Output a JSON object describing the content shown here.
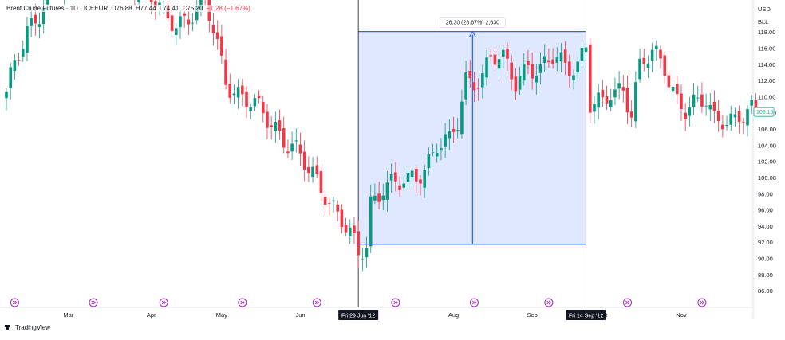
{
  "legend": {
    "symbol": "Brent Crude Futures · 1D · ICEEUR",
    "open": "O76.88",
    "high": "H77.44",
    "low": "L74.41",
    "close": "C75.20",
    "change": "−1.28 (−1.67%)"
  },
  "price_axis": {
    "currency": "USD",
    "unit": "BLL",
    "last_price_label": "108.15",
    "last_price": 108.15
  },
  "measure": {
    "label": "26.30 (28.67%) 2,630",
    "start_date_label": "Fri 29 Jun '12",
    "end_date_label": "Fri 14 Sep '12",
    "low": 91.8,
    "high": 118.1,
    "start_bar": 85,
    "end_bar": 140
  },
  "branding": {
    "name": "TradingView"
  },
  "colors": {
    "up": "#089981",
    "down": "#f23645",
    "measure": "#2962ff",
    "last": "#22ab94"
  },
  "chart_data": {
    "type": "candlestick",
    "title": "Brent Crude Futures · 1D · ICEEUR",
    "ylim": [
      84,
      122
    ],
    "yticks": [
      86,
      88,
      90,
      92,
      94,
      96,
      98,
      100,
      102,
      104,
      106,
      108,
      110,
      112,
      114,
      116,
      118
    ],
    "months": [
      {
        "label": "Mar",
        "bar": 15
      },
      {
        "label": "Apr",
        "bar": 35
      },
      {
        "label": "May",
        "bar": 52
      },
      {
        "label": "Jun",
        "bar": 71
      },
      {
        "label": "Aug",
        "bar": 108
      },
      {
        "label": "Sep",
        "bar": 127
      },
      {
        "label": "Oct",
        "bar": 144
      },
      {
        "label": "Nov",
        "bar": 163
      }
    ],
    "event_markers_at_bars": [
      2,
      21,
      38,
      57,
      75,
      94,
      113,
      131,
      150,
      168
    ],
    "series": [
      {
        "name": "OHLC",
        "ohlc": []
      }
    ]
  }
}
